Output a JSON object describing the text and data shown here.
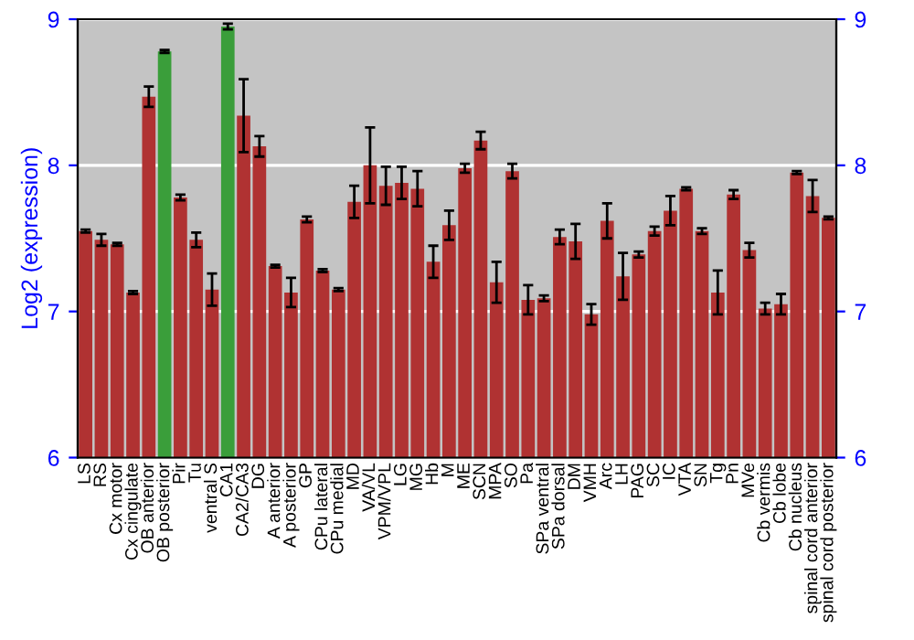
{
  "chart_data": {
    "type": "bar",
    "ylabel": "Log2 (expression)",
    "categories": [
      "LS",
      "RS",
      "Cx motor",
      "Cx cingulate",
      "OB anterior",
      "OB posterior",
      "Pir",
      "Tu",
      "ventral S",
      "CA1",
      "CA2/CA3",
      "DG",
      "A anterior",
      "A posterior",
      "GP",
      "CPu lateral",
      "CPu medial",
      "MD",
      "VA/VL",
      "VPM/VPL",
      "LG",
      "MG",
      "Hb",
      "M",
      "ME",
      "SCN",
      "MPA",
      "SO",
      "Pa",
      "SPa ventral",
      "SPa dorsal",
      "DM",
      "VMH",
      "Arc",
      "LH",
      "PAG",
      "SC",
      "IC",
      "VTA",
      "SN",
      "Tg",
      "Pn",
      "MVe",
      "Cb vermis",
      "Cb lobe",
      "Cb nucleus",
      "spinal cord anterior",
      "spinal cord posterior"
    ],
    "values": [
      7.55,
      7.49,
      7.46,
      7.13,
      8.47,
      8.78,
      7.78,
      7.49,
      7.15,
      8.95,
      8.34,
      8.13,
      7.31,
      7.13,
      7.63,
      7.28,
      7.15,
      7.75,
      8.0,
      7.86,
      7.88,
      7.84,
      7.34,
      7.59,
      7.98,
      8.17,
      7.2,
      7.96,
      7.08,
      7.09,
      7.51,
      7.48,
      6.98,
      7.62,
      7.24,
      7.39,
      7.55,
      7.69,
      7.84,
      7.55,
      7.13,
      7.8,
      7.42,
      7.02,
      7.05,
      7.95,
      7.79,
      7.64
    ],
    "errors": [
      0.01,
      0.04,
      0.01,
      0.01,
      0.07,
      0.01,
      0.02,
      0.05,
      0.11,
      0.02,
      0.25,
      0.07,
      0.01,
      0.1,
      0.02,
      0.01,
      0.01,
      0.11,
      0.26,
      0.13,
      0.11,
      0.12,
      0.11,
      0.1,
      0.03,
      0.06,
      0.14,
      0.05,
      0.1,
      0.02,
      0.05,
      0.12,
      0.07,
      0.12,
      0.16,
      0.02,
      0.03,
      0.1,
      0.01,
      0.02,
      0.15,
      0.03,
      0.05,
      0.04,
      0.07,
      0.01,
      0.11,
      0.01
    ],
    "colors": [
      "#b03232",
      "#b03232",
      "#b03232",
      "#b03232",
      "#b03232",
      "#3a9e3a",
      "#b03232",
      "#b03232",
      "#b03232",
      "#3a9e3a",
      "#b03232",
      "#b03232",
      "#b03232",
      "#b03232",
      "#b03232",
      "#b03232",
      "#b03232",
      "#b03232",
      "#b03232",
      "#b03232",
      "#b03232",
      "#b03232",
      "#b03232",
      "#b03232",
      "#b03232",
      "#b03232",
      "#b03232",
      "#b03232",
      "#b03232",
      "#b03232",
      "#b03232",
      "#b03232",
      "#b03232",
      "#b03232",
      "#b03232",
      "#b03232",
      "#b03232",
      "#b03232",
      "#b03232",
      "#b03232",
      "#b03232",
      "#b03232",
      "#b03232",
      "#b03232",
      "#b03232",
      "#b03232",
      "#b03232",
      "#b03232"
    ],
    "ylim": [
      6,
      9
    ],
    "yticks": [
      6,
      7,
      8,
      9
    ],
    "y2lim": [
      6,
      9
    ],
    "y2ticks": [
      6,
      7,
      8,
      9
    ],
    "grid": "y"
  }
}
